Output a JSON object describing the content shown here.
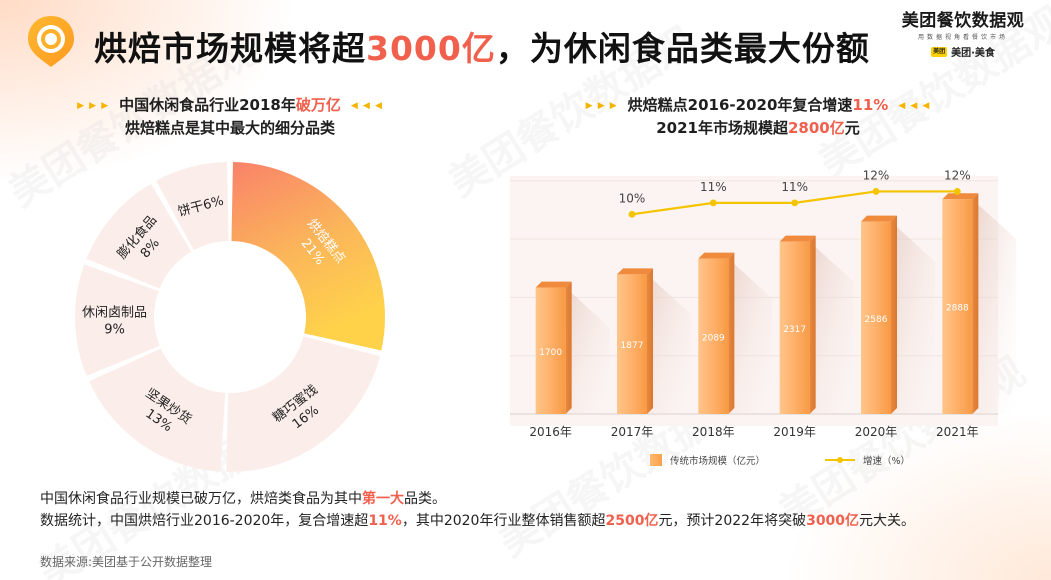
{
  "header": {
    "title_pre": "烘焙市场规模将超",
    "title_hl": "3000亿",
    "title_post": "，为休闲食品类最大份额",
    "brand_name": "美团餐饮数据观",
    "brand_sub": "用数据视角看餐饮市场",
    "brand_badge": "美团",
    "brand_mini": "美团·美食"
  },
  "left_subtitle": {
    "arrows_left": "▶ ▶ ▶",
    "arrows_right": "◀ ◀ ◀",
    "line1_pre": "中国休闲食品行业2018年",
    "line1_hl": "破万亿",
    "line2": "烘焙糕点是其中最大的细分品类"
  },
  "right_subtitle": {
    "arrows_left": "▶ ▶ ▶",
    "arrows_right": "◀ ◀ ◀",
    "line1_pre": "烘焙糕点2016-2020年复合增速",
    "line1_hl": "11%",
    "line2_pre": "2021年市场规模超",
    "line2_hl": "2800亿",
    "line2_post": "元"
  },
  "chart_data": [
    {
      "type": "pie",
      "title": "",
      "categories": [
        "烘焙糕点",
        "糖巧蜜饯",
        "坚果炒货",
        "休闲卤制品",
        "膨化食品",
        "饼干"
      ],
      "labels": [
        "烘焙糕点\n21%",
        "糖巧蜜饯\n16%",
        "坚果炒货\n13%",
        "休闲卤制品\n9%",
        "膨化食品\n8%",
        "饼干6%"
      ],
      "values": [
        21,
        16,
        13,
        9,
        8,
        6
      ],
      "unit": "%",
      "colors": [
        "#f7a15a",
        "#fbeeea",
        "#fbeeea",
        "#fbeeea",
        "#fbeeea",
        "#fbeeea"
      ],
      "highlight_gradient": [
        "#f9826a",
        "#fbb65a",
        "#ffd24a"
      ]
    },
    {
      "type": "bar",
      "categories": [
        "2016年",
        "2017年",
        "2018年",
        "2019年",
        "2020年",
        "2021年"
      ],
      "series": [
        {
          "name": "传统市场规模（亿元）",
          "values": [
            1700,
            1877,
            2089,
            2317,
            2586,
            2888
          ]
        },
        {
          "name": "增速（%）",
          "type": "line",
          "values": [
            null,
            10,
            11,
            11,
            12,
            12
          ],
          "labels": [
            "",
            "10%",
            "11%",
            "11%",
            "12%",
            "12%"
          ]
        }
      ],
      "value_labels": [
        "1700",
        "1877",
        "2089",
        "2317",
        "2586",
        "2888"
      ],
      "ylim": [
        0,
        3200
      ],
      "y2lim": [
        6,
        13
      ],
      "bar_colors": [
        "#ffc07a",
        "#f7a14c"
      ],
      "line_color": "#f5c400",
      "legend_position": "bottom"
    }
  ],
  "body": {
    "line1_pre": "中国休闲食品行业规模已破万亿，烘焙类食品为其中",
    "line1_hl": "第一大",
    "line1_post": "品类。",
    "line2_a": "数据统计，中国烘焙行业2016-2020年，复合增速超",
    "line2_hl1": "11%",
    "line2_b": "，其中2020年行业整体销售额超",
    "line2_hl2": "2500亿",
    "line2_c": "元，预计2022年将突破",
    "line2_hl3": "3000亿",
    "line2_d": "元大关。"
  },
  "source": "数据来源:美团基于公开数据整理",
  "watermark": "美团餐饮数据观"
}
